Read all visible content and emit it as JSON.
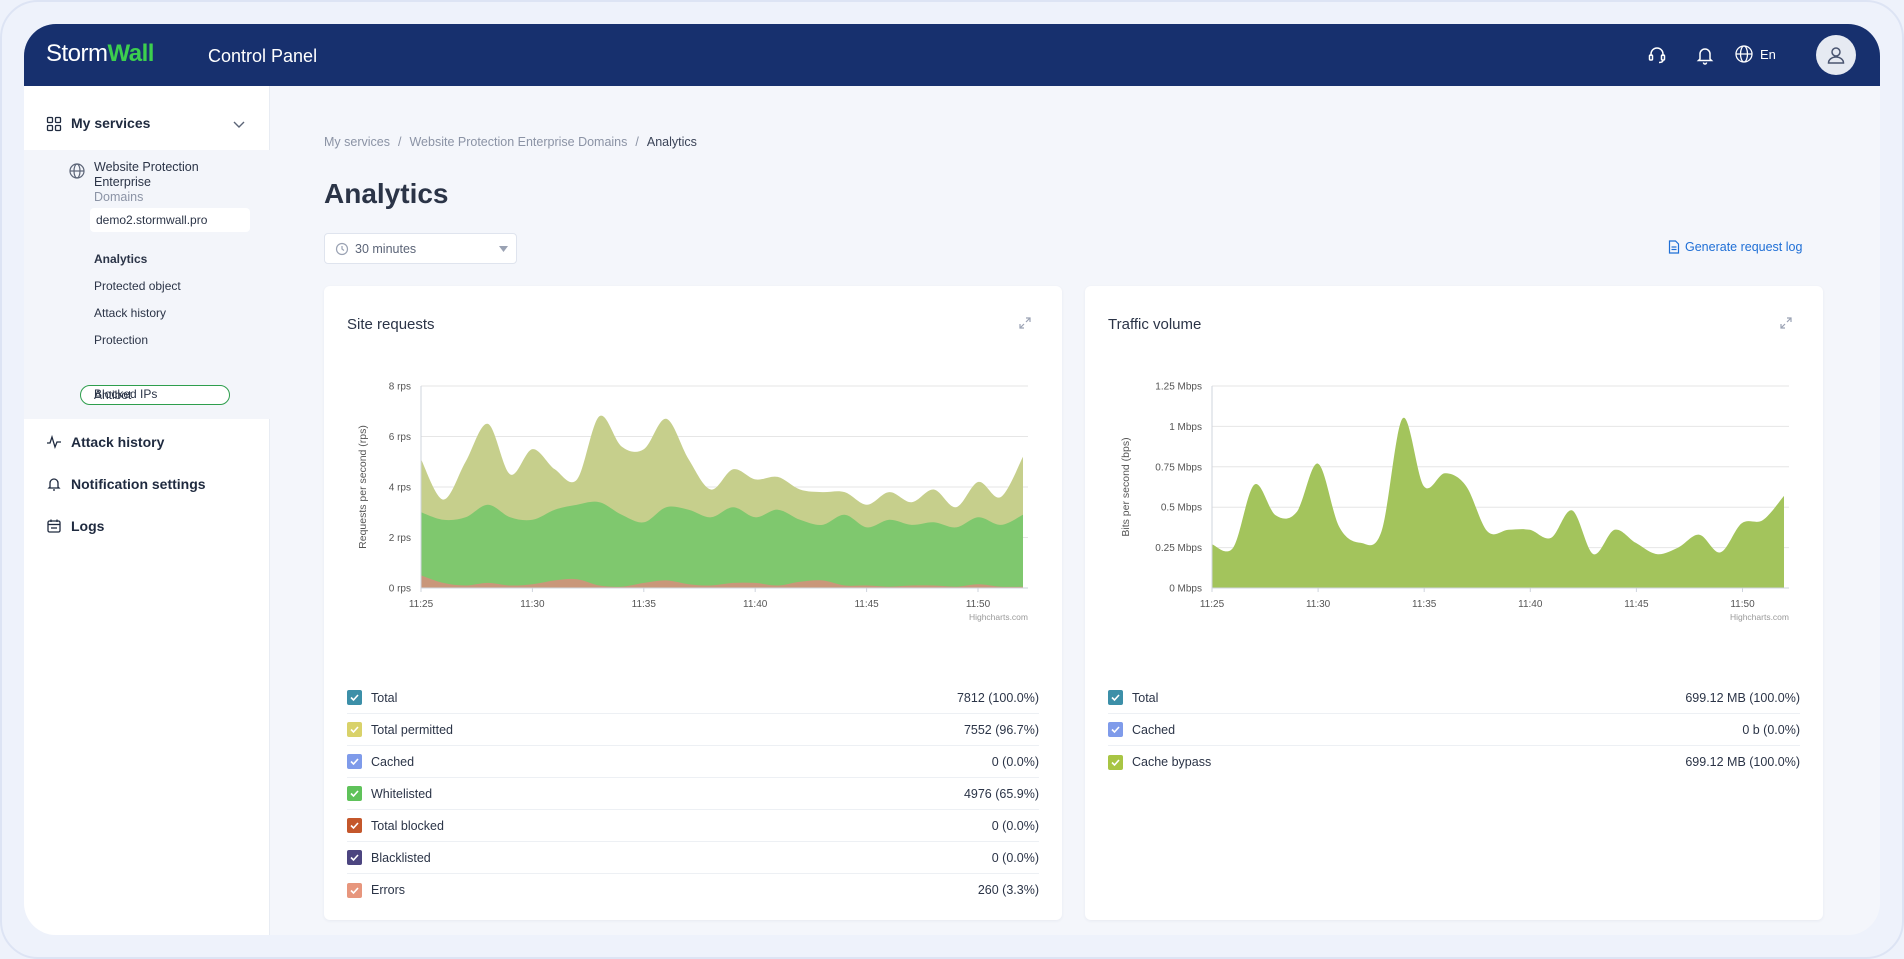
{
  "header": {
    "logo_storm": "Storm",
    "logo_wall": "Wall",
    "title": "Control Panel",
    "language": "En"
  },
  "sidebar": {
    "my_services": "My services",
    "service": {
      "name": "Website Protection Enterprise",
      "subtitle": "Domains"
    },
    "domain": "demo2.stormwall.pro",
    "sub_items": [
      "Analytics",
      "Protected object",
      "Attack history",
      "Protection",
      "Antibot",
      "Blocked IPs"
    ],
    "active_item": "Analytics",
    "highlighted_item": "Antibot",
    "attack_history": "Attack history",
    "notification_settings": "Notification settings",
    "logs": "Logs"
  },
  "breadcrumb": {
    "item1": "My services",
    "item2": "Website Protection Enterprise Domains",
    "current": "Analytics",
    "separator": "/"
  },
  "page": {
    "title": "Analytics",
    "time_range": "30 minutes",
    "generate_log": "Generate request log"
  },
  "colors": {
    "header_bg": "#17306e",
    "brand_green": "#3ccf4e",
    "link_blue": "#1f6fd6",
    "total": "#3c8fa8",
    "total_permitted": "#d9d26a",
    "cached": "#7f9bea",
    "whitelisted": "#5fc25a",
    "total_blocked": "#c4572b",
    "blacklisted": "#4c4580",
    "errors": "#e7967d",
    "cache_bypass": "#a8c544"
  },
  "site_requests": {
    "title": "Site requests",
    "legend": [
      {
        "label": "Total",
        "value": "7812 (100.0%)",
        "color": "#3c8fa8"
      },
      {
        "label": "Total permitted",
        "value": "7552 (96.7%)",
        "color": "#d9d26a"
      },
      {
        "label": "Cached",
        "value": "0 (0.0%)",
        "color": "#7f9bea"
      },
      {
        "label": "Whitelisted",
        "value": "4976 (65.9%)",
        "color": "#5fc25a"
      },
      {
        "label": "Total blocked",
        "value": "0 (0.0%)",
        "color": "#c4572b"
      },
      {
        "label": "Blacklisted",
        "value": "0 (0.0%)",
        "color": "#4c4580"
      },
      {
        "label": "Errors",
        "value": "260 (3.3%)",
        "color": "#e7967d"
      }
    ]
  },
  "traffic_volume": {
    "title": "Traffic volume",
    "legend": [
      {
        "label": "Total",
        "value": "699.12 MB (100.0%)",
        "color": "#3c8fa8"
      },
      {
        "label": "Cached",
        "value": "0 b (0.0%)",
        "color": "#7f9bea"
      },
      {
        "label": "Cache bypass",
        "value": "699.12 MB (100.0%)",
        "color": "#a8c544"
      }
    ]
  },
  "chart_data": [
    {
      "type": "area",
      "title": "Site requests",
      "xlabel": "",
      "ylabel": "Requests per second (rps)",
      "ylim": [
        0,
        8
      ],
      "y_ticks": [
        "0 rps",
        "2 rps",
        "4 rps",
        "6 rps",
        "8 rps"
      ],
      "x_ticks": [
        "11:25",
        "11:30",
        "11:35",
        "11:40",
        "11:45",
        "11:50"
      ],
      "x": [
        0,
        1,
        2,
        3,
        4,
        5,
        6,
        7,
        8,
        9,
        10,
        11,
        12,
        13,
        14,
        15,
        16,
        17,
        18,
        19,
        20,
        21,
        22,
        23,
        24,
        25,
        26,
        27
      ],
      "credit": "Highcharts.com",
      "series": [
        {
          "name": "Total permitted",
          "color": "#c6cf8c",
          "values": [
            5.1,
            3.5,
            5.0,
            6.5,
            4.5,
            5.5,
            4.7,
            4.3,
            6.8,
            5.6,
            5.5,
            6.7,
            5.1,
            3.9,
            4.7,
            4.3,
            4.4,
            3.9,
            3.8,
            3.8,
            3.3,
            3.8,
            3.4,
            3.9,
            3.2,
            4.2,
            3.6,
            5.2
          ]
        },
        {
          "name": "Whitelisted",
          "color": "#7fc86e",
          "values": [
            3.0,
            2.7,
            2.8,
            3.3,
            2.8,
            2.7,
            3.1,
            3.3,
            3.4,
            2.9,
            2.6,
            3.2,
            3.1,
            2.8,
            3.2,
            2.8,
            3.1,
            2.7,
            2.5,
            2.9,
            2.4,
            2.7,
            2.5,
            2.6,
            2.4,
            2.8,
            2.5,
            2.9
          ]
        },
        {
          "name": "Errors",
          "color": "#c9977a",
          "values": [
            0.5,
            0.2,
            0.1,
            0.2,
            0.1,
            0.15,
            0.3,
            0.35,
            0.1,
            0.05,
            0.2,
            0.3,
            0.15,
            0.1,
            0.2,
            0.2,
            0.1,
            0.25,
            0.3,
            0.1,
            0.1,
            0.05,
            0.1,
            0.1,
            0.05,
            0.15,
            0.05,
            0.05
          ]
        }
      ]
    },
    {
      "type": "area",
      "title": "Traffic volume",
      "xlabel": "",
      "ylabel": "Bits per second (bps)",
      "ylim": [
        0,
        1.25
      ],
      "y_ticks": [
        "0 Mbps",
        "0.25 Mbps",
        "0.5 Mbps",
        "0.75 Mbps",
        "1 Mbps",
        "1.25 Mbps"
      ],
      "x_ticks": [
        "11:25",
        "11:30",
        "11:35",
        "11:40",
        "11:45",
        "11:50"
      ],
      "x": [
        0,
        1,
        2,
        3,
        4,
        5,
        6,
        7,
        8,
        9,
        10,
        11,
        12,
        13,
        14,
        15,
        16,
        17,
        18,
        19,
        20,
        21,
        22,
        23,
        24,
        25,
        26,
        27
      ],
      "credit": "Highcharts.com",
      "series": [
        {
          "name": "Cache bypass",
          "color": "#a3c45c",
          "values": [
            0.27,
            0.25,
            0.64,
            0.45,
            0.47,
            0.77,
            0.38,
            0.28,
            0.35,
            1.05,
            0.63,
            0.71,
            0.63,
            0.35,
            0.36,
            0.36,
            0.31,
            0.48,
            0.21,
            0.36,
            0.28,
            0.21,
            0.25,
            0.33,
            0.22,
            0.4,
            0.42,
            0.57
          ]
        }
      ]
    }
  ]
}
